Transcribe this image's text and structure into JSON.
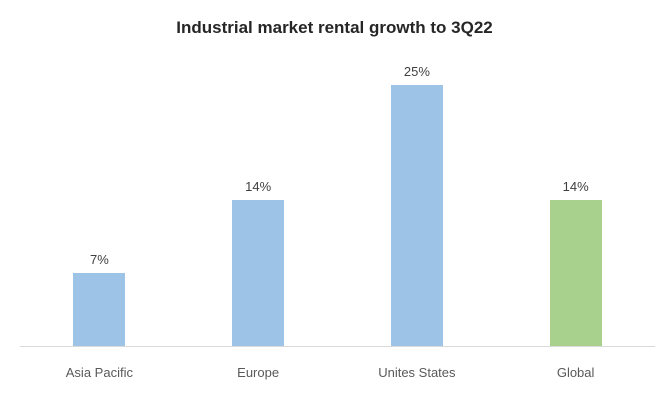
{
  "chart_data": {
    "type": "bar",
    "title": "Industrial market rental growth to 3Q22",
    "categories": [
      "Asia Pacific",
      "Europe",
      "Unites States",
      "Global"
    ],
    "values": [
      7,
      14,
      25,
      14
    ],
    "data_labels": [
      "7%",
      "14%",
      "25%",
      "14%"
    ],
    "bar_colors": [
      "#9dc3e6",
      "#9dc3e6",
      "#9dc3e6",
      "#a9d18e"
    ],
    "xlabel": "",
    "ylabel": "",
    "ylim": [
      0,
      27
    ],
    "grid": false,
    "legend": false,
    "axis_line_color": "#d9d9d9",
    "title_color": "#262626",
    "label_color": "#404040",
    "tick_label_color": "#595959"
  }
}
